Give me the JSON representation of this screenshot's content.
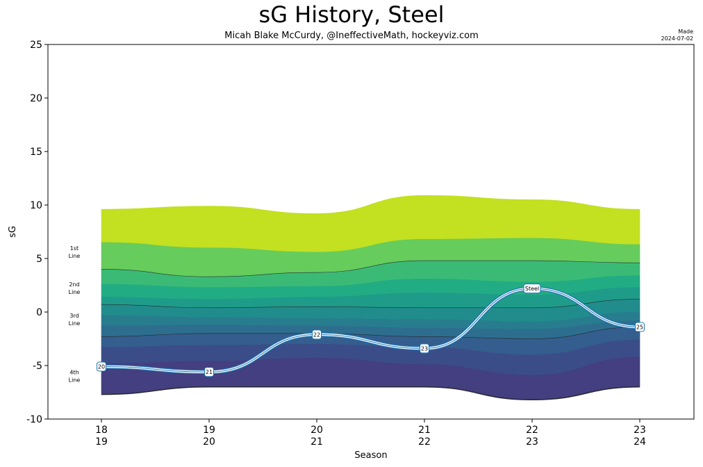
{
  "header": {
    "title": "sG History, Steel",
    "subtitle": "Micah Blake McCurdy, @IneffectiveMath, hockeyviz.com",
    "made_label": "Made",
    "made_date": "2024-07-02"
  },
  "chart_data": {
    "type": "area",
    "title": "sG History, Steel",
    "xlabel": "Season",
    "ylabel": "sG",
    "ylim": [
      -10,
      25
    ],
    "yticks": [
      -10,
      -5,
      0,
      5,
      10,
      15,
      20,
      25
    ],
    "x_ticks": [
      {
        "top": "18",
        "bottom": "19"
      },
      {
        "top": "19",
        "bottom": "20"
      },
      {
        "top": "20",
        "bottom": "21"
      },
      {
        "top": "21",
        "bottom": "22"
      },
      {
        "top": "22",
        "bottom": "23"
      },
      {
        "top": "23",
        "bottom": "24"
      }
    ],
    "band_boundaries": [
      [
        9.6,
        9.9,
        9.2,
        10.9,
        10.5,
        9.6
      ],
      [
        6.5,
        6.0,
        5.6,
        6.8,
        6.9,
        6.3
      ],
      [
        4.0,
        3.3,
        3.7,
        4.8,
        4.8,
        4.6
      ],
      [
        2.6,
        2.3,
        2.4,
        3.1,
        2.8,
        3.4
      ],
      [
        1.4,
        1.2,
        1.4,
        1.8,
        1.6,
        2.3
      ],
      [
        0.7,
        0.4,
        0.5,
        0.4,
        0.4,
        1.2
      ],
      [
        -0.3,
        -0.5,
        -0.6,
        -0.7,
        -0.9,
        0.0
      ],
      [
        -1.3,
        -1.2,
        -1.3,
        -1.5,
        -1.6,
        -0.8
      ],
      [
        -2.3,
        -2.0,
        -2.0,
        -2.3,
        -2.5,
        -1.4
      ],
      [
        -3.3,
        -3.1,
        -3.0,
        -3.3,
        -4.0,
        -2.6
      ],
      [
        -4.8,
        -4.6,
        -4.3,
        -4.9,
        -5.9,
        -4.2
      ],
      [
        -7.7,
        -7.0,
        -7.0,
        -7.0,
        -8.2,
        -7.0
      ]
    ],
    "band_colors": [
      "#c3e021",
      "#66cc5c",
      "#3bba76",
      "#22ac84",
      "#1e9c89",
      "#218c8c",
      "#277d8e",
      "#2d6e8e",
      "#345e8d",
      "#3b4d89",
      "#433f80"
    ],
    "line_separators": [
      2,
      5,
      8,
      11
    ],
    "line_labels": [
      {
        "label": [
          "1st",
          "Line"
        ],
        "y": 5.6
      },
      {
        "label": [
          "2nd",
          "Line"
        ],
        "y": 2.2
      },
      {
        "label": [
          "3rd",
          "Line"
        ],
        "y": -0.7
      },
      {
        "label": [
          "4th",
          "Line"
        ],
        "y": -6.0
      }
    ],
    "series": [
      {
        "name": "Steel",
        "values": [
          -5.1,
          -5.6,
          -2.1,
          -3.4,
          2.2,
          -1.4
        ],
        "point_labels": [
          "20",
          "21",
          "22",
          "23",
          "Steel",
          "25"
        ]
      }
    ],
    "colors": {
      "line_outline": "#1f77b4",
      "line_inner": "#ffffff",
      "label_border": "#1f77b4"
    }
  }
}
